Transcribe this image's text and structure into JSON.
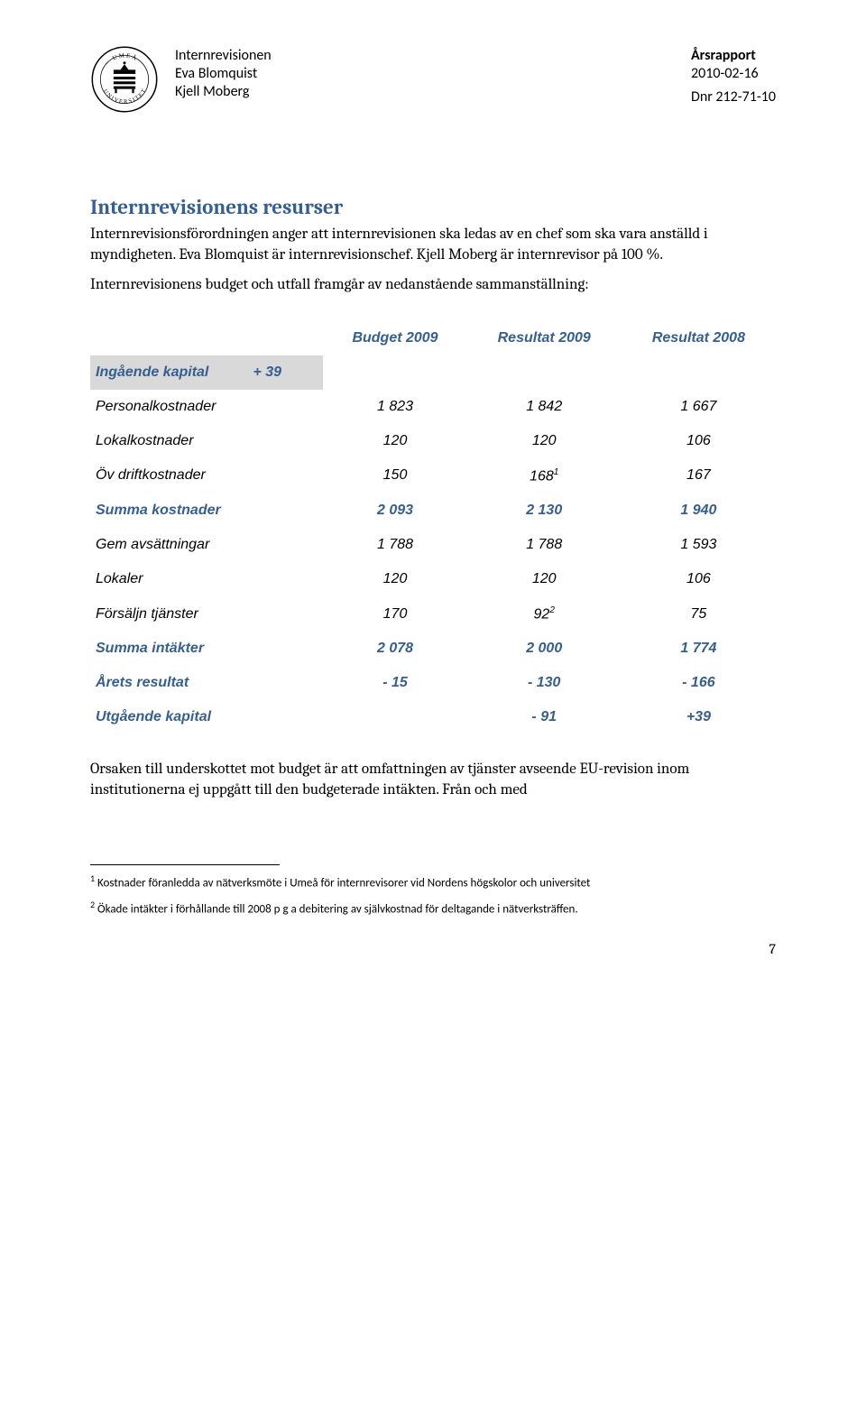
{
  "header": {
    "left": {
      "line1": "Internrevisionen",
      "line2": "Eva Blomquist",
      "line3": "Kjell Moberg"
    },
    "right": {
      "title": "Årsrapport",
      "date": "2010-02-16",
      "dnr": "Dnr 212-71-10"
    }
  },
  "section": {
    "title": "Internrevisionens resurser",
    "para1": "Internrevisionsförordningen anger att internrevisionen ska ledas av en chef som ska vara anställd i myndigheten. Eva Blomquist är internrevisionschef. Kjell Moberg är internrevisor på 100 %.",
    "para2": "Internrevisionens budget och utfall framgår av nedanstående sammanställning:",
    "para3": "Orsaken till underskottet mot budget är att omfattningen av tjänster avseende EU-revision inom institutionerna ej uppgått till den budgeterade intäkten. Från och med"
  },
  "table": {
    "headers": [
      "Budget 2009",
      "Resultat 2009",
      "Resultat 2008"
    ],
    "header_color": "#365f91",
    "capital_in": {
      "label": "Ingående kapital",
      "extra": "+ 39",
      "bg": "#d9d9d9"
    },
    "rows": [
      {
        "label": "Personalkostnader",
        "vals": [
          "1 823",
          "1 842",
          "1 667"
        ],
        "bold": false
      },
      {
        "label": "Lokalkostnader",
        "vals": [
          "120",
          "120",
          "106"
        ],
        "bold": false
      },
      {
        "label": "Öv driftkostnader",
        "vals": [
          "150",
          "168",
          "167"
        ],
        "sup": [
          "",
          "1",
          ""
        ],
        "bold": false
      },
      {
        "label": "Summa kostnader",
        "vals": [
          "2 093",
          "2 130",
          "1 940"
        ],
        "bold": true
      },
      {
        "label": "Gem avsättningar",
        "vals": [
          "1 788",
          "1 788",
          "1 593"
        ],
        "bold": false
      },
      {
        "label": "Lokaler",
        "vals": [
          "120",
          "120",
          "106"
        ],
        "bold": false
      },
      {
        "label": "Försäljn tjänster",
        "vals": [
          "170",
          "92",
          "75"
        ],
        "sup": [
          "",
          "2",
          ""
        ],
        "bold": false
      },
      {
        "label": "Summa intäkter",
        "vals": [
          "2 078",
          "2 000",
          "1 774"
        ],
        "bold": true
      },
      {
        "label": "Årets resultat",
        "vals": [
          "- 15",
          "- 130",
          "- 166"
        ],
        "bold": true
      },
      {
        "label": "Utgående kapital",
        "vals": [
          "",
          "- 91",
          "+39"
        ],
        "bold": true
      }
    ]
  },
  "footnotes": {
    "fn1": "Kostnader föranledda av nätverksmöte i Umeå för internrevisorer vid Nordens högskolor och universitet",
    "fn2": "Ökade intäkter i förhållande till 2008 p g a debitering av självkostnad för deltagande i nätverksträffen."
  },
  "page_number": "7",
  "colors": {
    "heading": "#365f91",
    "text": "#000000",
    "row_highlight": "#d9d9d9",
    "background": "#ffffff"
  }
}
